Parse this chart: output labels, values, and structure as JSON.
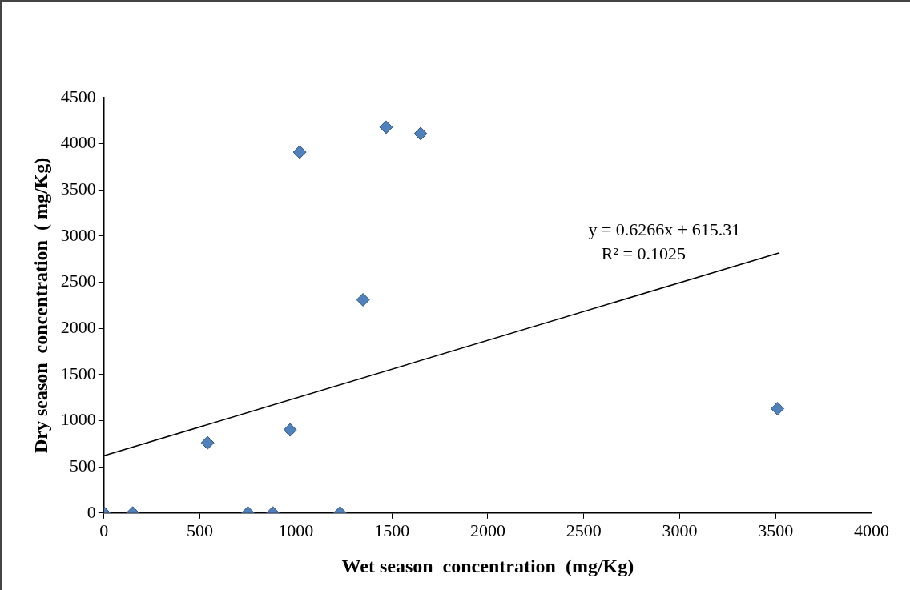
{
  "chart_data": {
    "type": "scatter",
    "xlabel": "Wet season  concentration  (mg/Kg)",
    "ylabel": "Dry season  concentration  ( mg/Kg)",
    "annotations": [
      "y = 0.6266x + 615.31",
      "R² = 0.1025"
    ],
    "series": [
      {
        "color": "#4f81bd",
        "marker": "diamond",
        "x": [
          0,
          150,
          540,
          750,
          880,
          970,
          1020,
          1230,
          1350,
          1470,
          1650,
          3510
        ],
        "values": [
          0,
          0,
          760,
          0,
          0,
          900,
          3910,
          0,
          2310,
          4180,
          4110,
          1130
        ]
      },
      {
        "type": "line",
        "color": "#000000",
        "marker": "none",
        "x": [
          0,
          3520
        ],
        "values": [
          620,
          2820
        ]
      }
    ],
    "xlim": [
      0,
      4000
    ],
    "xticks": [
      0,
      500,
      1000,
      1500,
      2000,
      2500,
      3000,
      3500,
      4000
    ],
    "ylim": [
      0,
      4500
    ],
    "yticks": [
      0,
      500,
      1000,
      1500,
      2000,
      2500,
      3000,
      3500,
      4000,
      4500
    ],
    "grid": false,
    "legend": false
  }
}
